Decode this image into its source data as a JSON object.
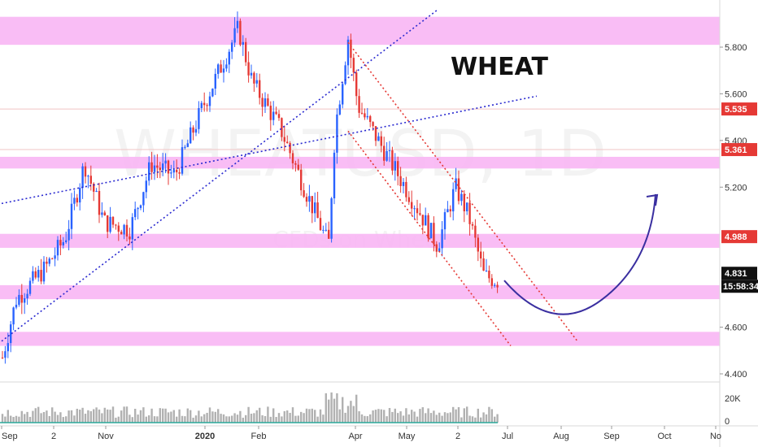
{
  "chart_data": {
    "type": "candlestick",
    "symbol_title": "WHEAT",
    "watermark": {
      "symbol": "WHEATUSD",
      "interval": "1D",
      "description": "CFDs on Wheat"
    },
    "y_axis": {
      "ylim": [
        4.38,
        5.96
      ],
      "ticks": [
        "5.800",
        "5.600",
        "5.400",
        "5.200",
        "4.600",
        "4.400"
      ],
      "price_tags": [
        {
          "label": "5.535",
          "value": 5.535,
          "color": "#e53935"
        },
        {
          "label": "5.361",
          "value": 5.361,
          "color": "#e53935"
        },
        {
          "label": "4.988",
          "value": 4.988,
          "color": "#e53935"
        },
        {
          "label": "4.831",
          "value": 4.831,
          "color": "#111111"
        }
      ],
      "countdown": "15:58:34"
    },
    "x_axis": {
      "ticks": [
        "Sep",
        "2",
        "Nov",
        "2020",
        "Feb",
        "Apr",
        "May",
        "2",
        "Jul",
        "Aug",
        "Sep",
        "Oct",
        "No"
      ],
      "bold_ticks": [
        "2020"
      ]
    },
    "zones": [
      {
        "low": 5.81,
        "high": 5.93
      },
      {
        "low": 5.28,
        "high": 5.33
      },
      {
        "low": 4.94,
        "high": 5.0
      },
      {
        "low": 4.72,
        "high": 4.78
      },
      {
        "low": 4.52,
        "high": 4.58
      }
    ],
    "channel_lines": [
      {
        "color": "#2a2ad0",
        "from": [
          "Sep",
          4.54
        ],
        "to": [
          "Apr",
          5.96
        ]
      },
      {
        "color": "#2a2ad0",
        "from": [
          "Sep",
          5.13
        ],
        "to": [
          "Aug",
          5.59
        ]
      },
      {
        "color": "#e53935",
        "from": [
          "Apr",
          5.82
        ],
        "to": [
          "Aug",
          4.54
        ]
      },
      {
        "color": "#e53935",
        "from": [
          "Apr",
          5.44
        ],
        "to": [
          "Jul",
          4.52
        ]
      }
    ],
    "projection": {
      "from": 4.8,
      "low": 4.69,
      "to": 5.17,
      "color": "#3a2fa0"
    },
    "volume": {
      "ticks": [
        "20K",
        "0"
      ],
      "ymax": 30000
    },
    "colors": {
      "up": "#2962ff",
      "down": "#e53935",
      "zone": "#f8b6f4",
      "hline": "#f0c4c4"
    }
  }
}
